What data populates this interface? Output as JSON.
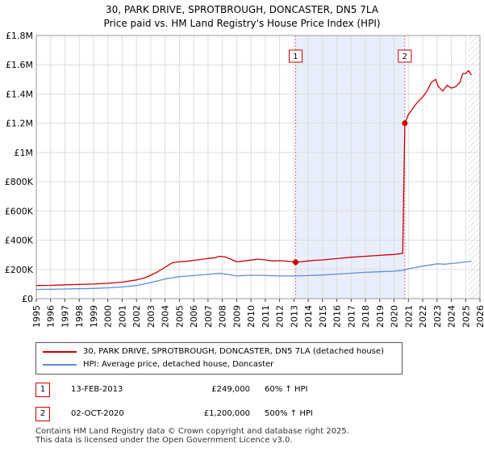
{
  "colors": {
    "price_line": "#cc0000",
    "hpi_line": "#5b8fd4",
    "shade": "#e8eefb",
    "grid": "#dddddd",
    "marker_box": "#cc0000",
    "vline": "#e07070"
  },
  "chart_data": {
    "type": "line",
    "title": "30, PARK DRIVE, SPROTBROUGH, DONCASTER, DN5 7LA",
    "subtitle": "Price paid vs. HM Land Registry's House Price Index (HPI)",
    "xlim": [
      1995,
      2026
    ],
    "ylim": [
      0,
      1800000
    ],
    "x_ticks": [
      1995,
      1996,
      1997,
      1998,
      1999,
      2000,
      2001,
      2002,
      2003,
      2004,
      2005,
      2006,
      2007,
      2008,
      2009,
      2010,
      2011,
      2012,
      2013,
      2014,
      2015,
      2016,
      2017,
      2018,
      2019,
      2020,
      2021,
      2022,
      2023,
      2024,
      2025,
      2026
    ],
    "y_ticks": [
      {
        "value": 0,
        "label": "£0"
      },
      {
        "value": 200000,
        "label": "£200K"
      },
      {
        "value": 400000,
        "label": "£400K"
      },
      {
        "value": 600000,
        "label": "£600K"
      },
      {
        "value": 800000,
        "label": "£800K"
      },
      {
        "value": 1000000,
        "label": "£1M"
      },
      {
        "value": 1200000,
        "label": "£1.2M"
      },
      {
        "value": 1400000,
        "label": "£1.4M"
      },
      {
        "value": 1600000,
        "label": "£1.6M"
      },
      {
        "value": 1800000,
        "label": "£1.8M"
      }
    ],
    "shaded_region": [
      2013.12,
      2020.75
    ],
    "hatched_region": [
      2025.2,
      2026
    ],
    "series": [
      {
        "name": "30, PARK DRIVE, SPROTBROUGH, DONCASTER, DN5 7LA (detached house)",
        "color": "#cc0000",
        "points": [
          [
            1995.0,
            90000
          ],
          [
            1996.0,
            91000
          ],
          [
            1997.0,
            95000
          ],
          [
            1998.0,
            97000
          ],
          [
            1999.0,
            100000
          ],
          [
            2000.0,
            105000
          ],
          [
            2001.0,
            113000
          ],
          [
            2002.0,
            128000
          ],
          [
            2002.5,
            140000
          ],
          [
            2003.0,
            160000
          ],
          [
            2003.5,
            185000
          ],
          [
            2004.0,
            215000
          ],
          [
            2004.5,
            245000
          ],
          [
            2005.0,
            252000
          ],
          [
            2005.5,
            255000
          ],
          [
            2006.0,
            262000
          ],
          [
            2006.5,
            268000
          ],
          [
            2007.0,
            275000
          ],
          [
            2007.5,
            280000
          ],
          [
            2007.8,
            290000
          ],
          [
            2008.2,
            285000
          ],
          [
            2008.6,
            270000
          ],
          [
            2009.0,
            252000
          ],
          [
            2009.5,
            258000
          ],
          [
            2010.0,
            264000
          ],
          [
            2010.5,
            270000
          ],
          [
            2011.0,
            265000
          ],
          [
            2011.5,
            258000
          ],
          [
            2012.0,
            260000
          ],
          [
            2012.5,
            257000
          ],
          [
            2013.12,
            249000
          ],
          [
            2013.5,
            252000
          ],
          [
            2014.0,
            258000
          ],
          [
            2014.5,
            262000
          ],
          [
            2015.0,
            265000
          ],
          [
            2016.0,
            274000
          ],
          [
            2017.0,
            283000
          ],
          [
            2018.0,
            290000
          ],
          [
            2019.0,
            296000
          ],
          [
            2019.5,
            300000
          ],
          [
            2020.0,
            302000
          ],
          [
            2020.6,
            310000
          ],
          [
            2020.75,
            1200000
          ],
          [
            2021.0,
            1260000
          ],
          [
            2021.3,
            1300000
          ],
          [
            2021.6,
            1340000
          ],
          [
            2022.0,
            1380000
          ],
          [
            2022.3,
            1420000
          ],
          [
            2022.6,
            1480000
          ],
          [
            2022.9,
            1500000
          ],
          [
            2023.1,
            1450000
          ],
          [
            2023.4,
            1420000
          ],
          [
            2023.7,
            1460000
          ],
          [
            2024.0,
            1440000
          ],
          [
            2024.3,
            1450000
          ],
          [
            2024.6,
            1480000
          ],
          [
            2024.8,
            1540000
          ],
          [
            2025.0,
            1540000
          ],
          [
            2025.2,
            1560000
          ],
          [
            2025.4,
            1530000
          ]
        ]
      },
      {
        "name": "HPI: Average price, detached house, Doncaster",
        "color": "#5b8fd4",
        "points": [
          [
            1995.0,
            63000
          ],
          [
            1996.0,
            64000
          ],
          [
            1997.0,
            66000
          ],
          [
            1998.0,
            68000
          ],
          [
            1999.0,
            70000
          ],
          [
            2000.0,
            74000
          ],
          [
            2001.0,
            80000
          ],
          [
            2002.0,
            90000
          ],
          [
            2003.0,
            110000
          ],
          [
            2004.0,
            135000
          ],
          [
            2005.0,
            150000
          ],
          [
            2006.0,
            158000
          ],
          [
            2007.0,
            166000
          ],
          [
            2007.8,
            173000
          ],
          [
            2008.5,
            165000
          ],
          [
            2009.0,
            155000
          ],
          [
            2010.0,
            160000
          ],
          [
            2011.0,
            158000
          ],
          [
            2012.0,
            155000
          ],
          [
            2013.12,
            155000
          ],
          [
            2014.0,
            158000
          ],
          [
            2015.0,
            162000
          ],
          [
            2016.0,
            168000
          ],
          [
            2017.0,
            174000
          ],
          [
            2018.0,
            180000
          ],
          [
            2019.0,
            184000
          ],
          [
            2020.0,
            188000
          ],
          [
            2020.75,
            195000
          ],
          [
            2021.0,
            205000
          ],
          [
            2022.0,
            222000
          ],
          [
            2023.0,
            238000
          ],
          [
            2023.5,
            236000
          ],
          [
            2024.0,
            240000
          ],
          [
            2024.5,
            245000
          ],
          [
            2025.0,
            252000
          ],
          [
            2025.4,
            254000
          ]
        ]
      }
    ],
    "transactions": [
      {
        "id": "1",
        "date": "13-FEB-2013",
        "x": 2013.12,
        "price": 249000,
        "price_label": "£249,000",
        "hpi_label": "60% ↑ HPI"
      },
      {
        "id": "2",
        "date": "02-OCT-2020",
        "x": 2020.75,
        "price": 1200000,
        "price_label": "£1,200,000",
        "hpi_label": "500% ↑ HPI"
      }
    ]
  },
  "legend": {
    "series_1": "30, PARK DRIVE, SPROTBROUGH, DONCASTER, DN5 7LA (detached house)",
    "series_2": "HPI: Average price, detached house, Doncaster"
  },
  "table": {
    "rows": [
      {
        "id": "1",
        "date": "13-FEB-2013",
        "price": "£249,000",
        "hpi": "60% ↑ HPI"
      },
      {
        "id": "2",
        "date": "02-OCT-2020",
        "price": "£1,200,000",
        "hpi": "500% ↑ HPI"
      }
    ]
  },
  "footer": {
    "line1": "Contains HM Land Registry data © Crown copyright and database right 2025.",
    "line2": "This data is licensed under the Open Government Licence v3.0."
  }
}
